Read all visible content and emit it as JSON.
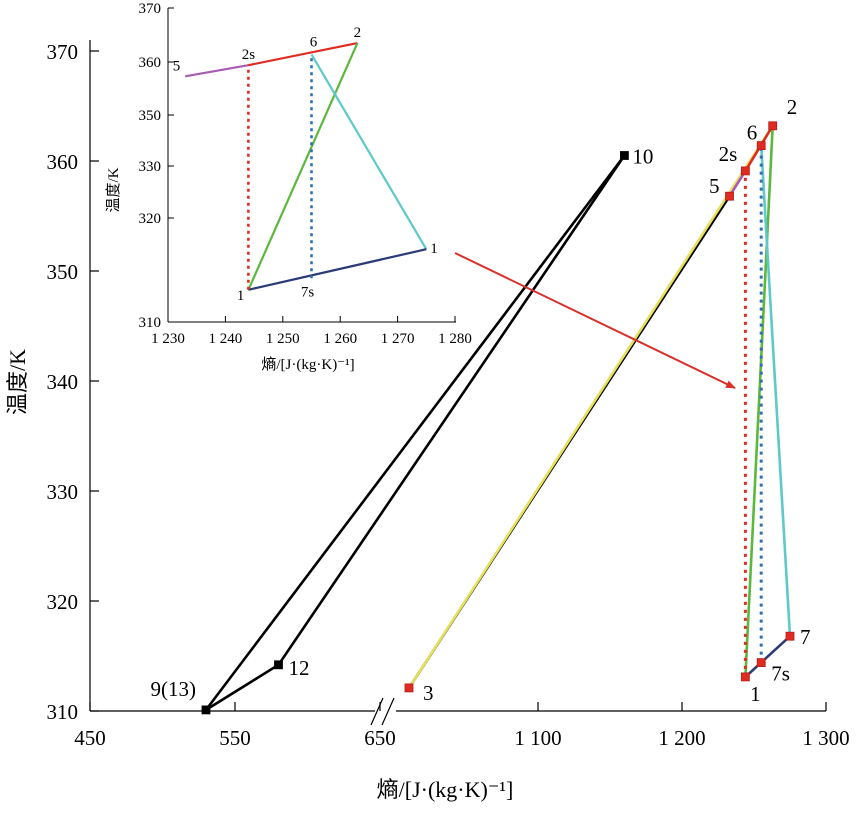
{
  "chart_data": [
    {
      "type": "line",
      "xlabel": "熵/[J·(kg·K)⁻¹]",
      "ylabel": "温度/K",
      "x_ticks": [
        "450",
        "550",
        "650",
        "1 100",
        "1 200",
        "1 300"
      ],
      "y_ticks": [
        "310",
        "320",
        "330",
        "340",
        "350",
        "360",
        "370"
      ],
      "x_axis_break": true,
      "ylim": [
        310,
        370
      ],
      "grid": false,
      "colors": {
        "black": "#000000",
        "yellow": "#e8e05a",
        "green": "#5cb83c",
        "cyan": "#5fc9c9",
        "navy": "#2c3a78",
        "purple": "#a95bb5",
        "red": "#e02b23",
        "blue_dot": "#2f6fb8",
        "arrow": "#d9312a"
      },
      "state_points": [
        {
          "label": "1",
          "entropy": 1244,
          "temperature": 313.1
        },
        {
          "label": "2",
          "entropy": 1263,
          "temperature": 363.2
        },
        {
          "label": "2s",
          "entropy": 1244,
          "temperature": 359.1
        },
        {
          "label": "3",
          "entropy": 670,
          "temperature": 312.1
        },
        {
          "label": "5",
          "entropy": 1233,
          "temperature": 356.8
        },
        {
          "label": "6",
          "entropy": 1255,
          "temperature": 361.4
        },
        {
          "label": "7",
          "entropy": 1275,
          "temperature": 316.8
        },
        {
          "label": "7s",
          "entropy": 1255,
          "temperature": 314.4
        },
        {
          "label": "9(13)",
          "entropy": 530,
          "temperature": 310.1
        },
        {
          "label": "10",
          "entropy": 1160,
          "temperature": 360.5
        },
        {
          "label": "12",
          "entropy": 580,
          "temperature": 314.2
        }
      ],
      "series": [
        {
          "color": "black",
          "points": [
            [
              530,
              310.1
            ],
            [
              1160,
              360.5
            ]
          ]
        },
        {
          "color": "black",
          "points": [
            [
              530,
              310.1
            ],
            [
              580,
              314.2
            ],
            [
              1160,
              360.5
            ]
          ]
        },
        {
          "color": "black",
          "points": [
            [
              670,
              312.1
            ],
            [
              1233,
              356.8
            ]
          ]
        },
        {
          "color": "yellow",
          "points": [
            [
              670,
              312.1
            ],
            [
              1263,
              363.2
            ]
          ]
        },
        {
          "color": "purple",
          "points": [
            [
              1233,
              356.8
            ],
            [
              1244,
              359.1
            ]
          ]
        },
        {
          "color": "red",
          "points": [
            [
              1244,
              359.1
            ],
            [
              1263,
              363.2
            ]
          ]
        },
        {
          "color": "green",
          "points": [
            [
              1244,
              313.1
            ],
            [
              1263,
              363.2
            ]
          ]
        },
        {
          "color": "cyan",
          "points": [
            [
              1255,
              361.4
            ],
            [
              1275,
              316.8
            ]
          ]
        },
        {
          "color": "navy",
          "points": [
            [
              1244,
              313.1
            ],
            [
              1275,
              316.8
            ]
          ]
        },
        {
          "color": "red",
          "style": "dotted",
          "points": [
            [
              1244,
              313.1
            ],
            [
              1244,
              359.1
            ]
          ]
        },
        {
          "color": "blue_dot",
          "style": "dotted",
          "points": [
            [
              1255,
              314.4
            ],
            [
              1255,
              361.4
            ]
          ]
        }
      ]
    },
    {
      "type": "line",
      "xlabel": "熵/[J·(kg·K)⁻¹]",
      "ylabel": "温度/K",
      "x_ticks": [
        "1 230",
        "1 240",
        "1 250",
        "1 260",
        "1 270",
        "1 280"
      ],
      "y_ticks": [
        "310",
        "320",
        "330",
        "350",
        "360",
        "370"
      ],
      "xlim": [
        1230,
        1280
      ],
      "grid": false,
      "point_labels": [
        {
          "label": "5",
          "x": 1233,
          "y": 357.3
        },
        {
          "label": "2s",
          "x": 1244,
          "y": 359.4
        },
        {
          "label": "6",
          "x": 1255,
          "y": 361.4
        },
        {
          "label": "2",
          "x": 1263,
          "y": 363.5
        },
        {
          "label": "1",
          "x": 1244,
          "y": 313.1
        },
        {
          "label": "7s",
          "x": 1255,
          "y": 314.2
        },
        {
          "label": "1",
          "x": 1275,
          "y": 317.0
        }
      ],
      "series": [
        {
          "color": "purple",
          "points": [
            [
              1233,
              357.3
            ],
            [
              1244,
              359.4
            ]
          ]
        },
        {
          "color": "red",
          "points": [
            [
              1244,
              359.4
            ],
            [
              1263,
              363.5
            ]
          ]
        },
        {
          "color": "green",
          "points": [
            [
              1244,
              313.1
            ],
            [
              1263,
              363.5
            ]
          ]
        },
        {
          "color": "cyan",
          "points": [
            [
              1255,
              361.4
            ],
            [
              1275,
              317.0
            ]
          ]
        },
        {
          "color": "navy",
          "points": [
            [
              1244,
              313.1
            ],
            [
              1275,
              317.0
            ]
          ]
        },
        {
          "color": "red",
          "style": "dotted",
          "points": [
            [
              1244,
              313.1
            ],
            [
              1244,
              359.4
            ]
          ]
        },
        {
          "color": "blue_dot",
          "style": "dotted",
          "points": [
            [
              1255,
              314.2
            ],
            [
              1255,
              361.4
            ]
          ]
        }
      ]
    }
  ]
}
